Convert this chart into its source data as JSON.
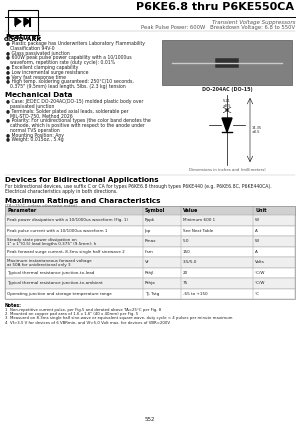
{
  "title": "P6KE6.8 thru P6KE550CA",
  "subtitle1": "Transient Voltage Suppressors",
  "subtitle2": "Peak Pulse Power: 600W   Breakdown Voltage: 6.8 to 550V",
  "brand": "GOOD-ARK",
  "features_title": "Features",
  "features": [
    "Plastic package has Underwriters Laboratory Flammability\n  Classification 94V-0",
    "Glass passivated junction",
    "600W peak pulse power capability with a 10/1000us\n  waveform, repetition rate (duty cycle): 0.01%",
    "Excellent clamping capability",
    "Low incremental surge resistance",
    "Very fast response time",
    "High temp. soldering guaranteed: 250°C/10 seconds,\n  0.375\" (9.5mm) lead length, 5lbs. (2.3 kg) tension"
  ],
  "mech_title": "Mechanical Data",
  "mech": [
    "Case: JEDEC DO-204AC(DO-15) molded plastic body over\n  passivated junction",
    "Terminals: Solder plated axial leads, solderable per\n  MIL-STD-750, Method 2026",
    "Polarity: For unidirectional types (the color band denotes the\n  cathode, which is positive with respect to the anode under\n  normal TVS operation",
    "Mounting Position: Any",
    "Weight: 0.015oz., 5.4g"
  ],
  "package_label": "DO-204AC (DO-15)",
  "dim_label": "Dimensions in inches and (millimeters)",
  "bidi_title": "Devices for Bidirectional Applications",
  "bidi_text": "For bidirectional devices, use suffix C or CA for types P6KE6.8 through types P6KE440 (e.g. P6KE6.8C, P6KE440CA).\nElectrical characteristics apply in both directions.",
  "table_title": "Maximum Ratings and Characteristics",
  "table_note_small": "(TA=25°C, unless otherwise noted)",
  "table_headers": [
    "Parameter",
    "Symbol",
    "Value",
    "Unit"
  ],
  "table_rows": [
    [
      "Peak power dissipation with a 10/1000us waveform (Fig. 1)",
      "Pppk",
      "Minimum 600 1",
      "W"
    ],
    [
      "Peak pulse current with a 10/1000us waveform 1",
      "Ipp",
      "See Next Table",
      "A"
    ],
    [
      "Steady state power dissipation on\n1\" x 1\"(0.5) lead lengths 0.375\" (9.5mm): h",
      "Pmax",
      "5.0",
      "W"
    ],
    [
      "Peak forward surge current, 8.3ms single half sinewave 2",
      "Ifsm",
      "150",
      "A"
    ],
    [
      "Maximum instantaneous forward voltage\nat 50A for unidirectional only 3",
      "Vf",
      "3.5/5.0",
      "Volts"
    ],
    [
      "Typical thermal resistance junction-to-lead",
      "Rthjl",
      "20",
      "°C/W"
    ],
    [
      "Typical thermal resistance junction-to-ambient",
      "Rthja",
      "75",
      "°C/W"
    ],
    [
      "Operating junction and storage temperature range",
      "Tj, Tstg",
      "-65 to +150",
      "°C"
    ]
  ],
  "notes_title": "Notes:",
  "notes": [
    "1  Non-repetitive current pulse, per Fig.5 and derated above TA=25°C per Fig. 8",
    "2  Mounted on copper pad area of 1.6 x 1.6\" (40 x 40mm) per Fig. 5",
    "3  Measured on 8.3ms single half sine-wave or equivalent square wave, duty cycle < 4 pulses per minute maximum",
    "4  Vf>3.5 V for devices of 6 VBRmin, and Vf>5.0 Volt max. for devices of VBR=200V"
  ],
  "page_number": "552",
  "bg_color": "#ffffff",
  "text_color": "#222222",
  "table_header_bg": "#d0d0d0",
  "table_row_bg_alt": "#efefef",
  "border_color": "#999999",
  "logo_border": "#000000",
  "separator_color": "#000000",
  "section_color": "#000000"
}
